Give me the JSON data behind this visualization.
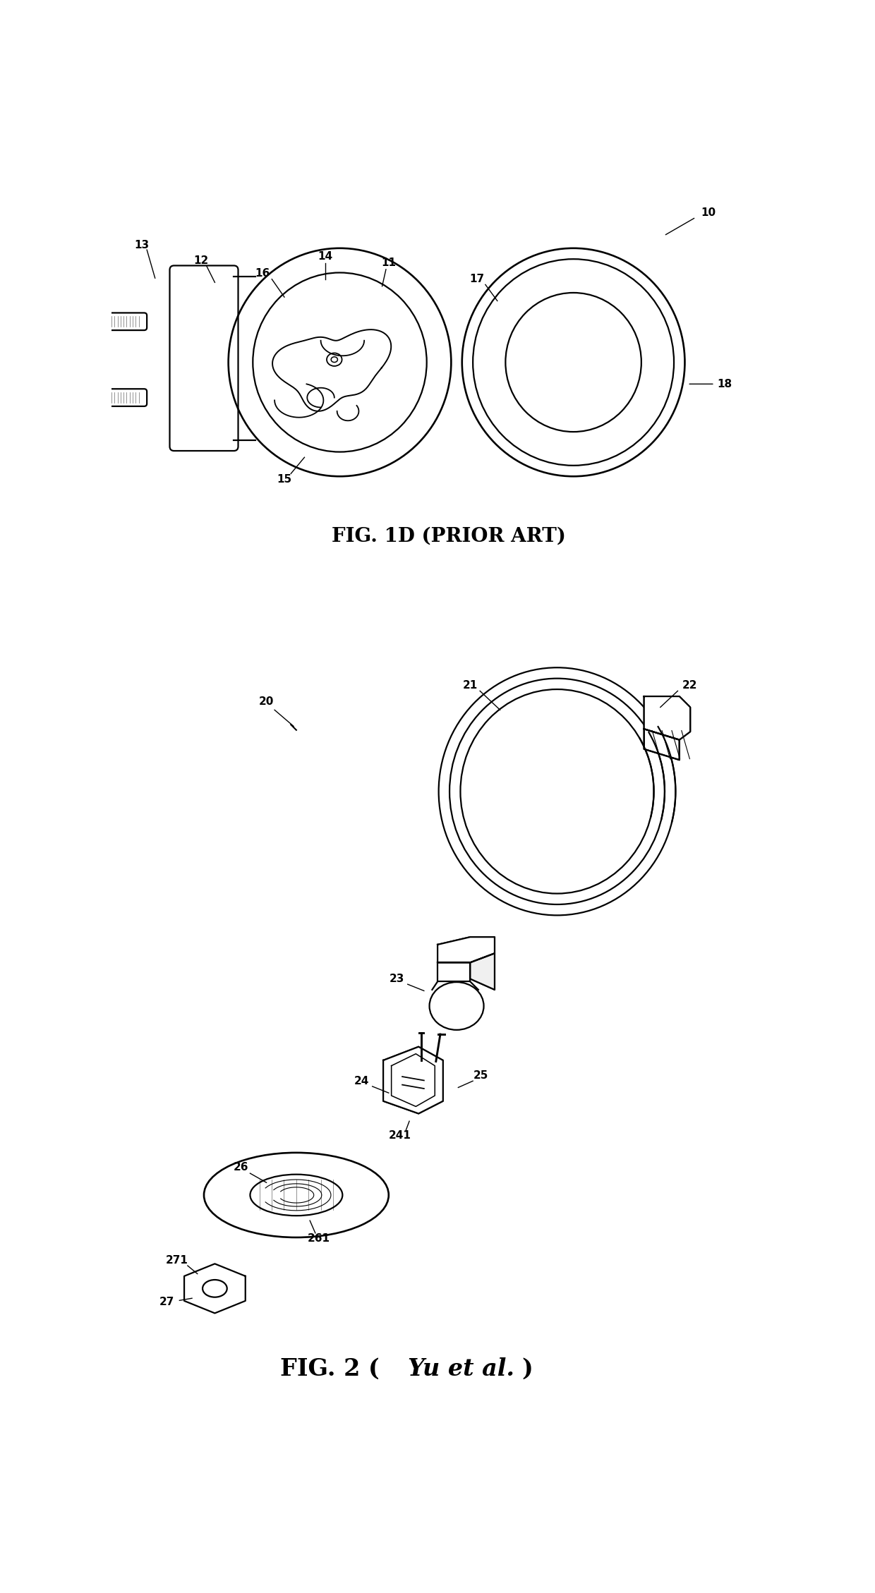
{
  "fig_width": 12.4,
  "fig_height": 22.58,
  "background_color": "#ffffff",
  "fig1d_caption": "FIG. 1D (PRIOR ART)",
  "label_fontsize": 11,
  "caption_fontsize": 20,
  "line_color": "#000000",
  "lw": 1.6
}
